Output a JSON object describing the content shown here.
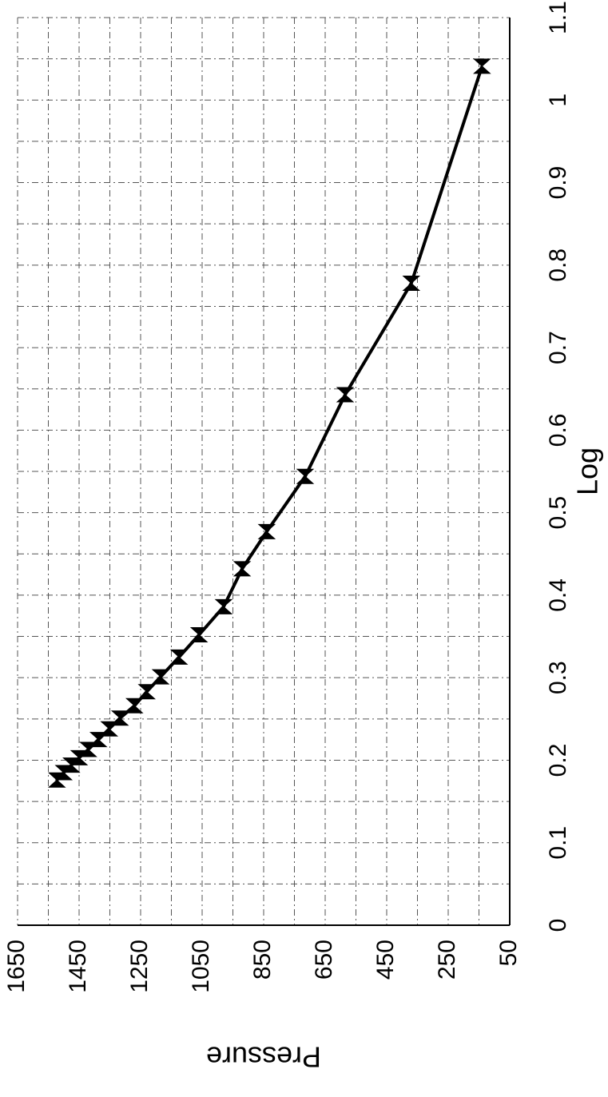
{
  "chart_data": {
    "type": "line",
    "rotated": true,
    "title": "",
    "xlabel": "Log",
    "ylabel": "Pressure",
    "xlim": [
      0,
      1.1
    ],
    "ylim": [
      50,
      1650
    ],
    "x_ticks": [
      "0",
      "0.1",
      "0.2",
      "0.3",
      "0.4",
      "0.5",
      "0.6",
      "0.7",
      "0.8",
      "0.9",
      "1",
      "1.1"
    ],
    "y_ticks": [
      "1650",
      "1450",
      "1250",
      "1050",
      "850",
      "650",
      "450",
      "250",
      "50"
    ],
    "grid": true,
    "legend": "none",
    "series": [
      {
        "marker": "bowtie",
        "x": [
          0.176,
          0.185,
          0.194,
          0.203,
          0.213,
          0.225,
          0.238,
          0.251,
          0.266,
          0.283,
          0.301,
          0.325,
          0.352,
          0.386,
          0.432,
          0.477,
          0.544,
          0.643,
          0.778,
          1.041
        ],
        "y": [
          1522,
          1500,
          1475,
          1450,
          1420,
          1387,
          1352,
          1317,
          1270,
          1230,
          1185,
          1125,
          1060,
          980,
          920,
          840,
          715,
          585,
          370,
          140
        ]
      }
    ]
  }
}
